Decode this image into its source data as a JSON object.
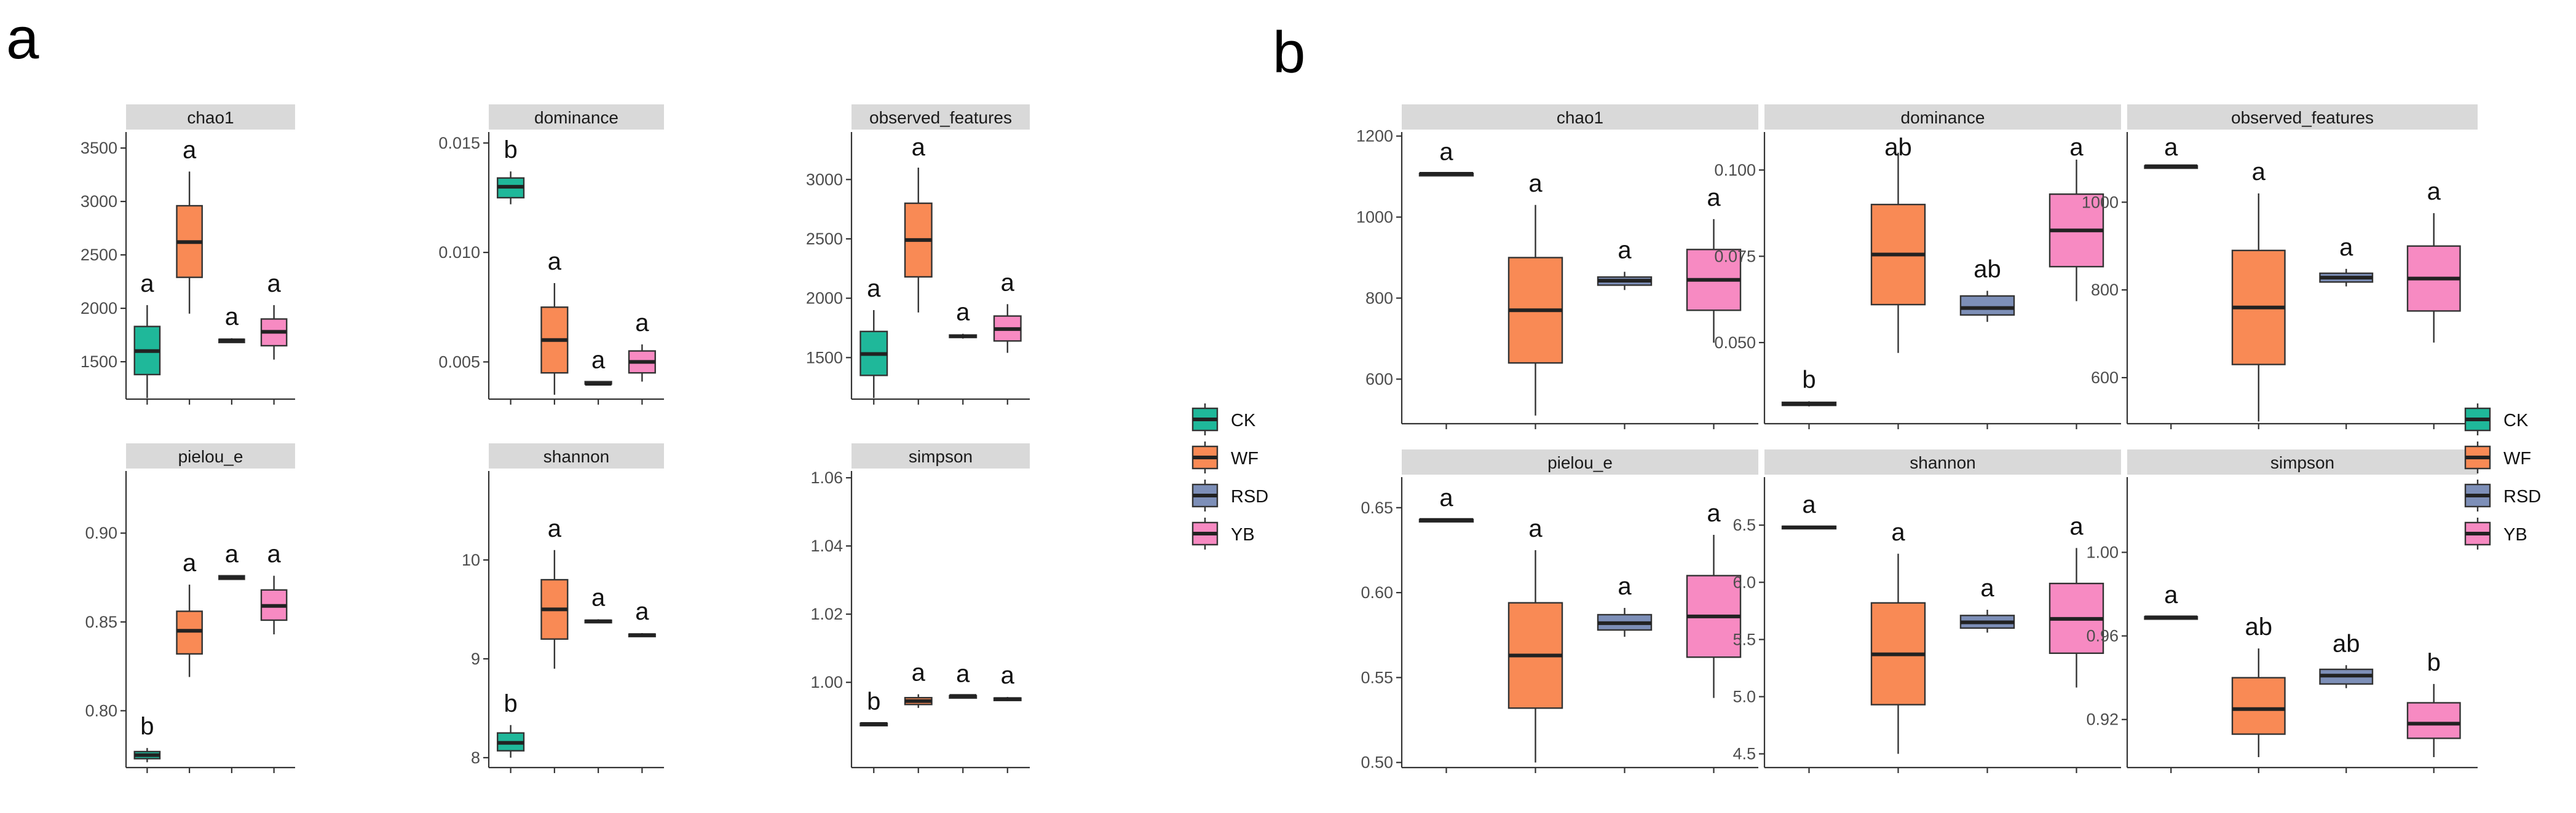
{
  "groups": [
    "CK",
    "WF",
    "RSD",
    "YB"
  ],
  "colors": {
    "CK": "#1fb89a",
    "WF": "#f98a55",
    "RSD": "#7d8fb8",
    "YB": "#f78ac2"
  },
  "chart_data": [
    {
      "panel": "a",
      "type": "box",
      "facets": [
        {
          "title": "chao1",
          "ylim": [
            1150,
            3650
          ],
          "ticks": [
            1500,
            2000,
            2500,
            3000,
            3500
          ],
          "tick_labels": [
            "1500",
            "2000",
            "2500",
            "3000",
            "3500"
          ],
          "boxes": [
            {
              "group": "CK",
              "lower": 1160,
              "q1": 1380,
              "median": 1600,
              "q3": 1830,
              "upper": 2030,
              "sig": "a"
            },
            {
              "group": "WF",
              "lower": 1950,
              "q1": 2290,
              "median": 2620,
              "q3": 2960,
              "upper": 3280,
              "sig": "a"
            },
            {
              "group": "RSD",
              "lower": 1680,
              "q1": 1680,
              "median": 1700,
              "q3": 1710,
              "upper": 1720,
              "sig": "a"
            },
            {
              "group": "YB",
              "lower": 1520,
              "q1": 1650,
              "median": 1780,
              "q3": 1900,
              "upper": 2030,
              "sig": "a"
            }
          ]
        },
        {
          "title": "dominance",
          "ylim": [
            0.0033,
            0.0155
          ],
          "ticks": [
            0.005,
            0.01,
            0.015
          ],
          "tick_labels": [
            "0.005",
            "0.010",
            "0.015"
          ],
          "boxes": [
            {
              "group": "CK",
              "lower": 0.0122,
              "q1": 0.0125,
              "median": 0.013,
              "q3": 0.0134,
              "upper": 0.0137,
              "sig": "b"
            },
            {
              "group": "WF",
              "lower": 0.0035,
              "q1": 0.0045,
              "median": 0.006,
              "q3": 0.0075,
              "upper": 0.0086,
              "sig": "a"
            },
            {
              "group": "RSD",
              "lower": 0.004,
              "q1": 0.004,
              "median": 0.004,
              "q3": 0.0041,
              "upper": 0.0041,
              "sig": "a"
            },
            {
              "group": "YB",
              "lower": 0.0041,
              "q1": 0.0045,
              "median": 0.005,
              "q3": 0.0055,
              "upper": 0.0058,
              "sig": "a"
            }
          ]
        },
        {
          "title": "observed_features",
          "ylim": [
            1150,
            3400
          ],
          "ticks": [
            1500,
            2000,
            2500,
            3000
          ],
          "tick_labels": [
            "1500",
            "2000",
            "2500",
            "3000"
          ],
          "boxes": [
            {
              "group": "CK",
              "lower": 1160,
              "q1": 1350,
              "median": 1530,
              "q3": 1720,
              "upper": 1900,
              "sig": "a"
            },
            {
              "group": "WF",
              "lower": 1880,
              "q1": 2180,
              "median": 2490,
              "q3": 2800,
              "upper": 3100,
              "sig": "a"
            },
            {
              "group": "RSD",
              "lower": 1660,
              "q1": 1670,
              "median": 1680,
              "q3": 1690,
              "upper": 1700,
              "sig": "a"
            },
            {
              "group": "YB",
              "lower": 1540,
              "q1": 1640,
              "median": 1740,
              "q3": 1850,
              "upper": 1950,
              "sig": "a"
            }
          ]
        },
        {
          "title": "pielou_e",
          "ylim": [
            0.768,
            0.935
          ],
          "ticks": [
            0.8,
            0.85,
            0.9
          ],
          "tick_labels": [
            "0.80",
            "0.85",
            "0.90"
          ],
          "boxes": [
            {
              "group": "CK",
              "lower": 0.771,
              "q1": 0.773,
              "median": 0.775,
              "q3": 0.777,
              "upper": 0.779,
              "sig": "b"
            },
            {
              "group": "WF",
              "lower": 0.819,
              "q1": 0.832,
              "median": 0.845,
              "q3": 0.856,
              "upper": 0.871,
              "sig": "a"
            },
            {
              "group": "RSD",
              "lower": 0.874,
              "q1": 0.874,
              "median": 0.875,
              "q3": 0.876,
              "upper": 0.876,
              "sig": "a"
            },
            {
              "group": "YB",
              "lower": 0.843,
              "q1": 0.851,
              "median": 0.859,
              "q3": 0.868,
              "upper": 0.876,
              "sig": "a"
            }
          ]
        },
        {
          "title": "shannon",
          "ylim": [
            7.9,
            10.9
          ],
          "ticks": [
            8,
            9,
            10
          ],
          "tick_labels": [
            "8",
            "9",
            "10"
          ],
          "boxes": [
            {
              "group": "CK",
              "lower": 8.0,
              "q1": 8.07,
              "median": 8.15,
              "q3": 8.25,
              "upper": 8.33,
              "sig": "b"
            },
            {
              "group": "WF",
              "lower": 8.9,
              "q1": 9.2,
              "median": 9.5,
              "q3": 9.8,
              "upper": 10.1,
              "sig": "a"
            },
            {
              "group": "RSD",
              "lower": 9.36,
              "q1": 9.37,
              "median": 9.38,
              "q3": 9.39,
              "upper": 9.4,
              "sig": "a"
            },
            {
              "group": "YB",
              "lower": 9.22,
              "q1": 9.23,
              "median": 9.24,
              "q3": 9.25,
              "upper": 9.26,
              "sig": "a"
            }
          ]
        },
        {
          "title": "simpson",
          "ylim": [
            0.975,
            1.062
          ],
          "ticks": [
            1.0,
            1.02,
            1.04,
            1.06
          ],
          "tick_labels": [
            "1.00",
            "1.02",
            "1.04",
            "1.06"
          ],
          "boxes": [
            {
              "group": "CK",
              "lower": 0.9875,
              "q1": 0.9876,
              "median": 0.9878,
              "q3": 0.988,
              "upper": 0.9881,
              "sig": "b"
            },
            {
              "group": "WF",
              "lower": 0.9925,
              "q1": 0.9935,
              "median": 0.9945,
              "q3": 0.9955,
              "upper": 0.9965,
              "sig": "a"
            },
            {
              "group": "RSD",
              "lower": 0.9958,
              "q1": 0.9959,
              "median": 0.996,
              "q3": 0.9961,
              "upper": 0.9962,
              "sig": "a"
            },
            {
              "group": "YB",
              "lower": 0.9945,
              "q1": 0.9948,
              "median": 0.9951,
              "q3": 0.9954,
              "upper": 0.9957,
              "sig": "a"
            }
          ]
        }
      ]
    },
    {
      "panel": "b",
      "type": "box",
      "facets": [
        {
          "title": "chao1",
          "ylim": [
            490,
            1210
          ],
          "ticks": [
            600,
            800,
            1000,
            1200
          ],
          "tick_labels": [
            "600",
            "800",
            "1000",
            "1200"
          ],
          "boxes": [
            {
              "group": "CK",
              "lower": 1105,
              "q1": 1105,
              "median": 1107,
              "q3": 1108,
              "upper": 1108,
              "sig": "a"
            },
            {
              "group": "WF",
              "lower": 510,
              "q1": 640,
              "median": 770,
              "q3": 900,
              "upper": 1030,
              "sig": "a"
            },
            {
              "group": "RSD",
              "lower": 820,
              "q1": 832,
              "median": 843,
              "q3": 852,
              "upper": 865,
              "sig": "a"
            },
            {
              "group": "YB",
              "lower": 690,
              "q1": 770,
              "median": 845,
              "q3": 920,
              "upper": 995,
              "sig": "a"
            }
          ]
        },
        {
          "title": "dominance",
          "ylim": [
            0.0265,
            0.111
          ],
          "ticks": [
            0.05,
            0.075,
            0.1
          ],
          "tick_labels": [
            "0.050",
            "0.075",
            "0.100"
          ],
          "boxes": [
            {
              "group": "CK",
              "lower": 0.0315,
              "q1": 0.0318,
              "median": 0.0322,
              "q3": 0.0327,
              "upper": 0.033,
              "sig": "b"
            },
            {
              "group": "WF",
              "lower": 0.047,
              "q1": 0.061,
              "median": 0.0755,
              "q3": 0.09,
              "upper": 0.105,
              "sig": "ab"
            },
            {
              "group": "RSD",
              "lower": 0.056,
              "q1": 0.058,
              "median": 0.06,
              "q3": 0.0635,
              "upper": 0.065,
              "sig": "ab"
            },
            {
              "group": "YB",
              "lower": 0.062,
              "q1": 0.072,
              "median": 0.0825,
              "q3": 0.093,
              "upper": 0.103,
              "sig": "a"
            }
          ]
        },
        {
          "title": "observed_features",
          "ylim": [
            495,
            1160
          ],
          "ticks": [
            600,
            800,
            1000
          ],
          "tick_labels": [
            "600",
            "800",
            "1000"
          ],
          "boxes": [
            {
              "group": "CK",
              "lower": 1080,
              "q1": 1080,
              "median": 1082,
              "q3": 1083,
              "upper": 1083,
              "sig": "a"
            },
            {
              "group": "WF",
              "lower": 500,
              "q1": 630,
              "median": 760,
              "q3": 890,
              "upper": 1020,
              "sig": "a"
            },
            {
              "group": "RSD",
              "lower": 808,
              "q1": 818,
              "median": 828,
              "q3": 838,
              "upper": 848,
              "sig": "a"
            },
            {
              "group": "YB",
              "lower": 680,
              "q1": 752,
              "median": 826,
              "q3": 900,
              "upper": 975,
              "sig": "a"
            }
          ]
        },
        {
          "title": "pielou_e",
          "ylim": [
            0.497,
            0.668
          ],
          "ticks": [
            0.5,
            0.55,
            0.6,
            0.65
          ],
          "tick_labels": [
            "0.50",
            "0.55",
            "0.60",
            "0.65"
          ],
          "boxes": [
            {
              "group": "CK",
              "lower": 0.6425,
              "q1": 0.6425,
              "median": 0.6428,
              "q3": 0.6431,
              "upper": 0.6431,
              "sig": "a"
            },
            {
              "group": "WF",
              "lower": 0.5,
              "q1": 0.532,
              "median": 0.563,
              "q3": 0.594,
              "upper": 0.625,
              "sig": "a"
            },
            {
              "group": "RSD",
              "lower": 0.574,
              "q1": 0.578,
              "median": 0.582,
              "q3": 0.587,
              "upper": 0.591,
              "sig": "a"
            },
            {
              "group": "YB",
              "lower": 0.538,
              "q1": 0.562,
              "median": 0.586,
              "q3": 0.61,
              "upper": 0.634,
              "sig": "a"
            }
          ]
        },
        {
          "title": "shannon",
          "ylim": [
            4.38,
            6.92
          ],
          "ticks": [
            4.5,
            5.0,
            5.5,
            6.0,
            6.5
          ],
          "tick_labels": [
            "4.5",
            "5.0",
            "5.5",
            "6.0",
            "6.5"
          ],
          "boxes": [
            {
              "group": "CK",
              "lower": 6.47,
              "q1": 6.47,
              "median": 6.48,
              "q3": 6.49,
              "upper": 6.49,
              "sig": "a"
            },
            {
              "group": "WF",
              "lower": 4.5,
              "q1": 4.93,
              "median": 5.37,
              "q3": 5.82,
              "upper": 6.25,
              "sig": "a"
            },
            {
              "group": "RSD",
              "lower": 5.56,
              "q1": 5.6,
              "median": 5.65,
              "q3": 5.71,
              "upper": 5.76,
              "sig": "a"
            },
            {
              "group": "YB",
              "lower": 5.08,
              "q1": 5.38,
              "median": 5.68,
              "q3": 5.99,
              "upper": 6.3,
              "sig": "a"
            }
          ]
        },
        {
          "title": "simpson",
          "ylim": [
            0.897,
            1.036
          ],
          "ticks": [
            0.92,
            0.96,
            1.0
          ],
          "tick_labels": [
            "0.92",
            "0.96",
            "1.00"
          ],
          "boxes": [
            {
              "group": "CK",
              "lower": 0.9685,
              "q1": 0.9686,
              "median": 0.9689,
              "q3": 0.9692,
              "upper": 0.9693,
              "sig": "a"
            },
            {
              "group": "WF",
              "lower": 0.902,
              "q1": 0.913,
              "median": 0.925,
              "q3": 0.94,
              "upper": 0.954,
              "sig": "ab"
            },
            {
              "group": "RSD",
              "lower": 0.935,
              "q1": 0.937,
              "median": 0.941,
              "q3": 0.944,
              "upper": 0.946,
              "sig": "ab"
            },
            {
              "group": "YB",
              "lower": 0.902,
              "q1": 0.911,
              "median": 0.918,
              "q3": 0.928,
              "upper": 0.937,
              "sig": "b"
            }
          ]
        }
      ]
    }
  ],
  "legend": {
    "labels": [
      "CK",
      "WF",
      "RSD",
      "YB"
    ]
  },
  "panel_labels": [
    "a",
    "b"
  ]
}
